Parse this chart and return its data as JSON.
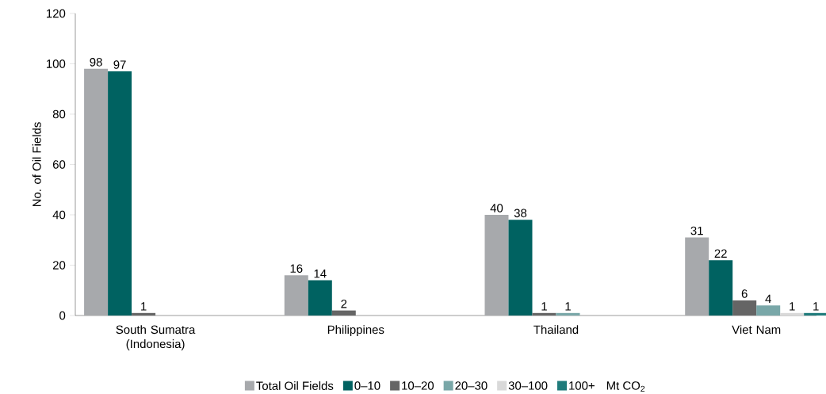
{
  "chart_data": {
    "type": "bar",
    "ylabel": "No. of Oil Fields",
    "legend_title": "Mt CO$_{2}$",
    "legend": "bottom",
    "data_labels": true,
    "categories": [
      "South Sumatra (Indonesia)",
      "Philippines",
      "Thailand",
      "Viet Nam"
    ],
    "ylim": [
      0,
      120
    ],
    "yticks": [
      0,
      20,
      40,
      60,
      80,
      100,
      120
    ],
    "series": [
      {
        "name": "Total Oil Fields",
        "color": "#a7a9ac",
        "values": [
          98,
          16,
          40,
          31
        ]
      },
      {
        "name": "0–10",
        "color": "#006261",
        "values": [
          97,
          14,
          38,
          22
        ]
      },
      {
        "name": "10–20",
        "color": "#656565",
        "values": [
          1,
          2,
          1,
          6
        ]
      },
      {
        "name": "20–30",
        "color": "#79a7a8",
        "values": [
          null,
          null,
          1,
          4
        ]
      },
      {
        "name": "30–100",
        "color": "#d9d9d9",
        "values": [
          null,
          null,
          null,
          1
        ]
      },
      {
        "name": "100+",
        "color": "#1f7b7b",
        "values": [
          null,
          null,
          null,
          1
        ]
      }
    ]
  }
}
